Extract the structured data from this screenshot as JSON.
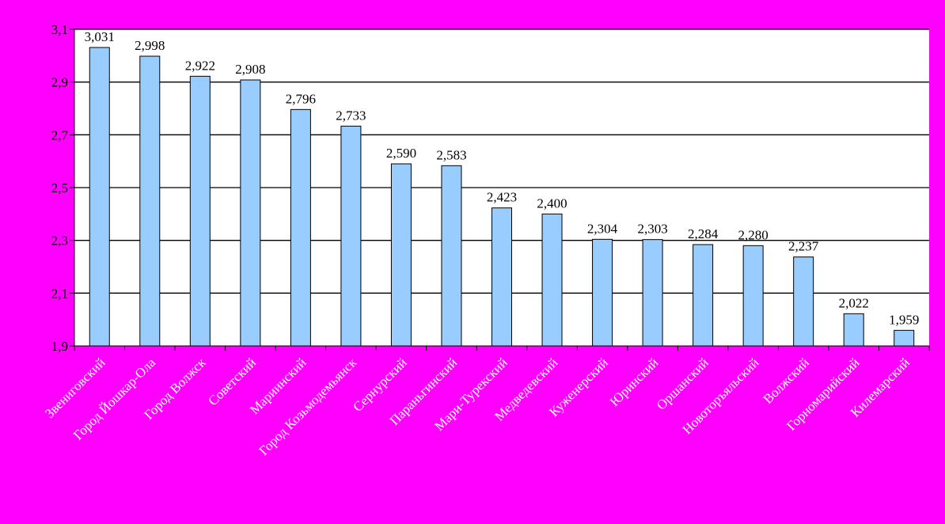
{
  "chart_data": {
    "type": "bar",
    "title": "",
    "xlabel": "",
    "ylabel": "",
    "ylim": [
      1.9,
      3.1
    ],
    "yticks": [
      "1,9",
      "2,1",
      "2,3",
      "2,5",
      "2,7",
      "2,9",
      "3,1"
    ],
    "ytick_values": [
      1.9,
      2.1,
      2.3,
      2.5,
      2.7,
      2.9,
      3.1
    ],
    "grid": true,
    "legend": "none",
    "categories": [
      "Звениговский",
      "Город Йошкар-Ола",
      "Город Волжск",
      "Советский",
      "Мариинский",
      "Город Козьмодемьянск",
      "Сернурский",
      "Параньгинский",
      "Мари-Турекский",
      "Медведевский",
      "Куженерский",
      "Юринский",
      "Оршанский",
      "Новоторъяльский",
      "Волжский",
      "Горномарийский",
      "Килемарский"
    ],
    "values": [
      3.031,
      2.998,
      2.922,
      2.908,
      2.796,
      2.733,
      2.59,
      2.583,
      2.423,
      2.4,
      2.304,
      2.303,
      2.284,
      2.28,
      2.237,
      2.022,
      1.959
    ],
    "data_labels": [
      "3,031",
      "2,998",
      "2,922",
      "2,908",
      "2,796",
      "2,733",
      "2,590",
      "2,583",
      "2,423",
      "2,400",
      "2,304",
      "2,303",
      "2,284",
      "2,280",
      "2,237",
      "2,022",
      "1,959"
    ],
    "colors": {
      "background": "#ff00ff",
      "plot_area": "#ffffff",
      "bar_fill": "#99ccff",
      "bar_stroke": "#000000",
      "category_text": "#ffffff"
    }
  }
}
